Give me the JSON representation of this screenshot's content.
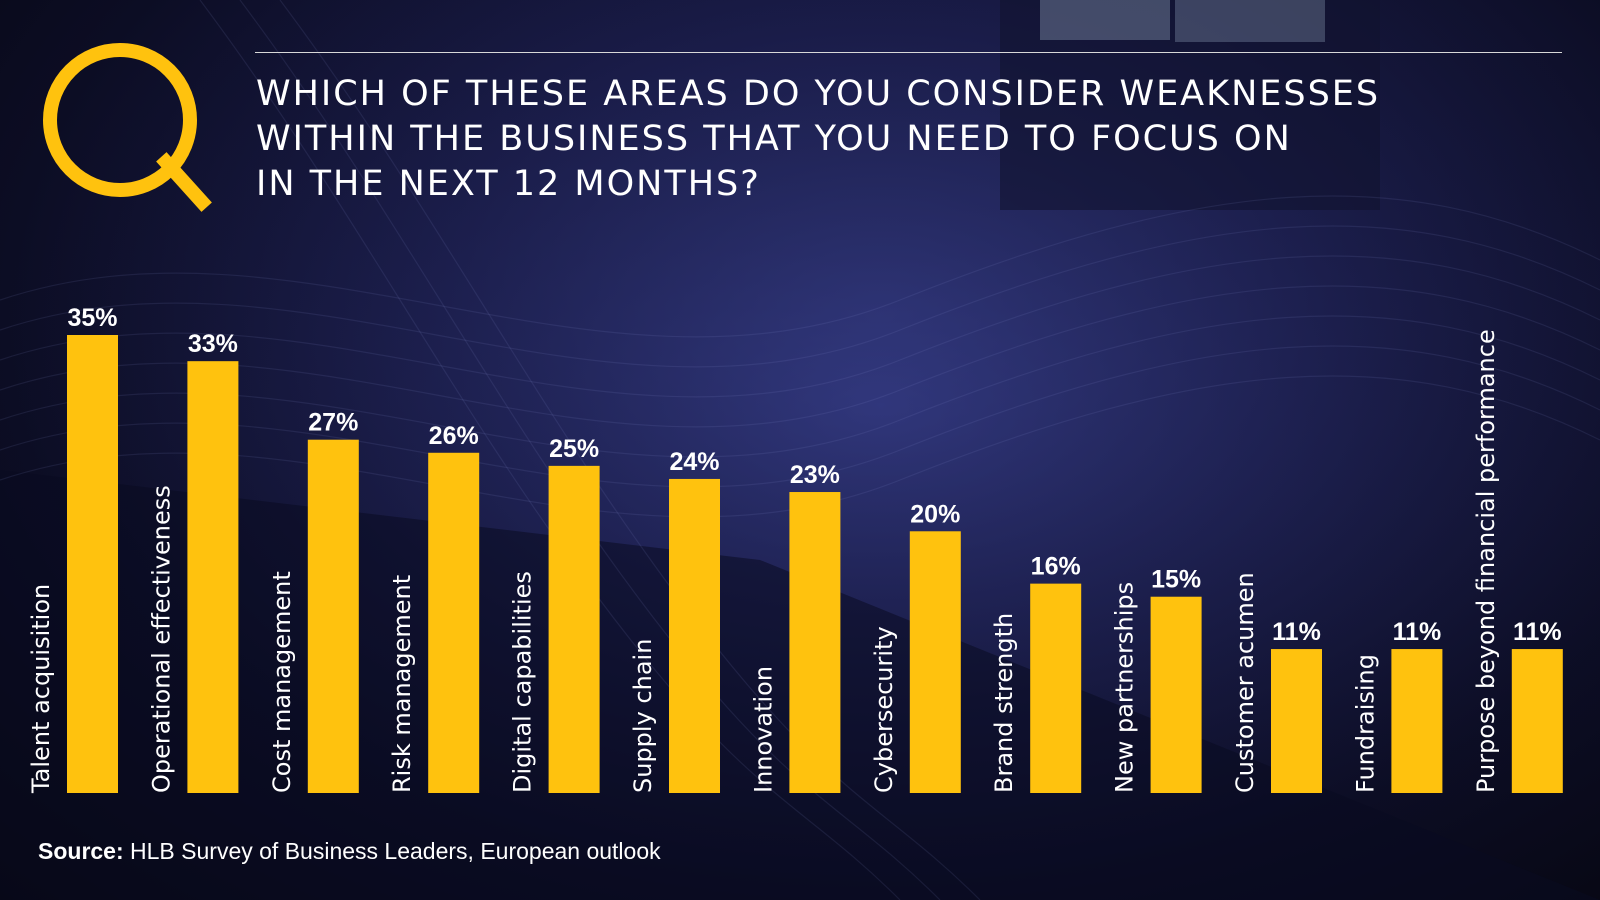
{
  "title_lines": [
    "WHICH OF THESE AREAS DO YOU CONSIDER WEAKNESSES",
    "WITHIN THE BUSINESS THAT YOU NEED TO FOCUS ON",
    "IN THE NEXT 12 MONTHS?"
  ],
  "source": {
    "label": "Source:",
    "text": "HLB Survey of Business Leaders, European outlook"
  },
  "colors": {
    "accent": "#ffc20e",
    "text": "#ffffff",
    "background": "#141638"
  },
  "logo_icon": "q-icon",
  "chart_data": {
    "type": "bar",
    "categories": [
      "Talent acquisition",
      "Operational effectiveness",
      "Cost management",
      "Risk management",
      "Digital capabilities",
      "Supply chain",
      "Innovation",
      "Cybersecurity",
      "Brand strength",
      "New partnerships",
      "Customer acumen",
      "Fundraising",
      "Purpose beyond financial performance"
    ],
    "values": [
      35,
      33,
      27,
      26,
      25,
      24,
      23,
      20,
      16,
      15,
      11,
      11,
      11
    ],
    "data_labels": [
      "35%",
      "33%",
      "27%",
      "26%",
      "25%",
      "24%",
      "23%",
      "20%",
      "16%",
      "15%",
      "11%",
      "11%",
      "11%"
    ],
    "unit": "%",
    "ylim": [
      0,
      35
    ],
    "grid": false,
    "legend": "none",
    "category_label_orientation": "vertical"
  }
}
